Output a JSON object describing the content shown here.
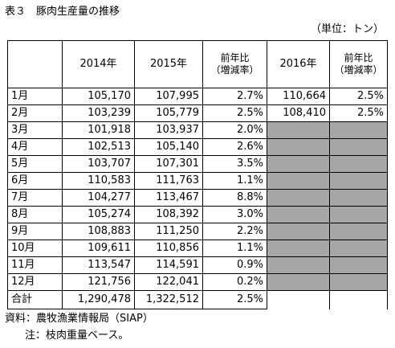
{
  "title": "表３　豚肉生産量の推移",
  "unit": "（単位：トン）",
  "headers": {
    "month": "",
    "y2014": "2014年",
    "y2015": "2015年",
    "yoy_line1": "前年比",
    "yoy_line2": "（増減率）",
    "y2016": "2016年",
    "yoy2016_line1": "前年比",
    "yoy2016_line2": "（増減率）"
  },
  "rows": [
    {
      "month": "1月",
      "y2014": "105,170",
      "y2015": "107,995",
      "yoy": "2.7%",
      "y2016": "110,664",
      "yoy2016": "2.5%"
    },
    {
      "month": "2月",
      "y2014": "103,239",
      "y2015": "105,779",
      "yoy": "2.5%",
      "y2016": "108,410",
      "yoy2016": "2.5%"
    },
    {
      "month": "3月",
      "y2014": "101,918",
      "y2015": "103,937",
      "yoy": "2.0%",
      "y2016": "",
      "yoy2016": ""
    },
    {
      "month": "4月",
      "y2014": "102,513",
      "y2015": "105,140",
      "yoy": "2.6%",
      "y2016": "",
      "yoy2016": ""
    },
    {
      "month": "5月",
      "y2014": "103,707",
      "y2015": "107,301",
      "yoy": "3.5%",
      "y2016": "",
      "yoy2016": ""
    },
    {
      "month": "6月",
      "y2014": "110,583",
      "y2015": "111,763",
      "yoy": "1.1%",
      "y2016": "",
      "yoy2016": ""
    },
    {
      "month": "7月",
      "y2014": "104,277",
      "y2015": "113,467",
      "yoy": "8.8%",
      "y2016": "",
      "yoy2016": ""
    },
    {
      "month": "8月",
      "y2014": "105,274",
      "y2015": "108,392",
      "yoy": "3.0%",
      "y2016": "",
      "yoy2016": ""
    },
    {
      "month": "9月",
      "y2014": "108,883",
      "y2015": "111,250",
      "yoy": "2.2%",
      "y2016": "",
      "yoy2016": ""
    },
    {
      "month": "10月",
      "y2014": "109,611",
      "y2015": "110,856",
      "yoy": "1.1%",
      "y2016": "",
      "yoy2016": ""
    },
    {
      "month": "11月",
      "y2014": "113,547",
      "y2015": "114,591",
      "yoy": "0.9%",
      "y2016": "",
      "yoy2016": ""
    },
    {
      "month": "12月",
      "y2014": "121,756",
      "y2015": "122,041",
      "yoy": "0.2%",
      "y2016": "",
      "yoy2016": ""
    }
  ],
  "total": {
    "label": "合計",
    "y2014": "1,290,478",
    "y2015": "1,322,512",
    "yoy": "2.5%"
  },
  "colors": {
    "unavailable_fill": "#a6a6a6",
    "border": "#000000"
  },
  "source": "資料：農牧漁業情報局（SIAP）",
  "note": "注：枝肉重量ベース。"
}
